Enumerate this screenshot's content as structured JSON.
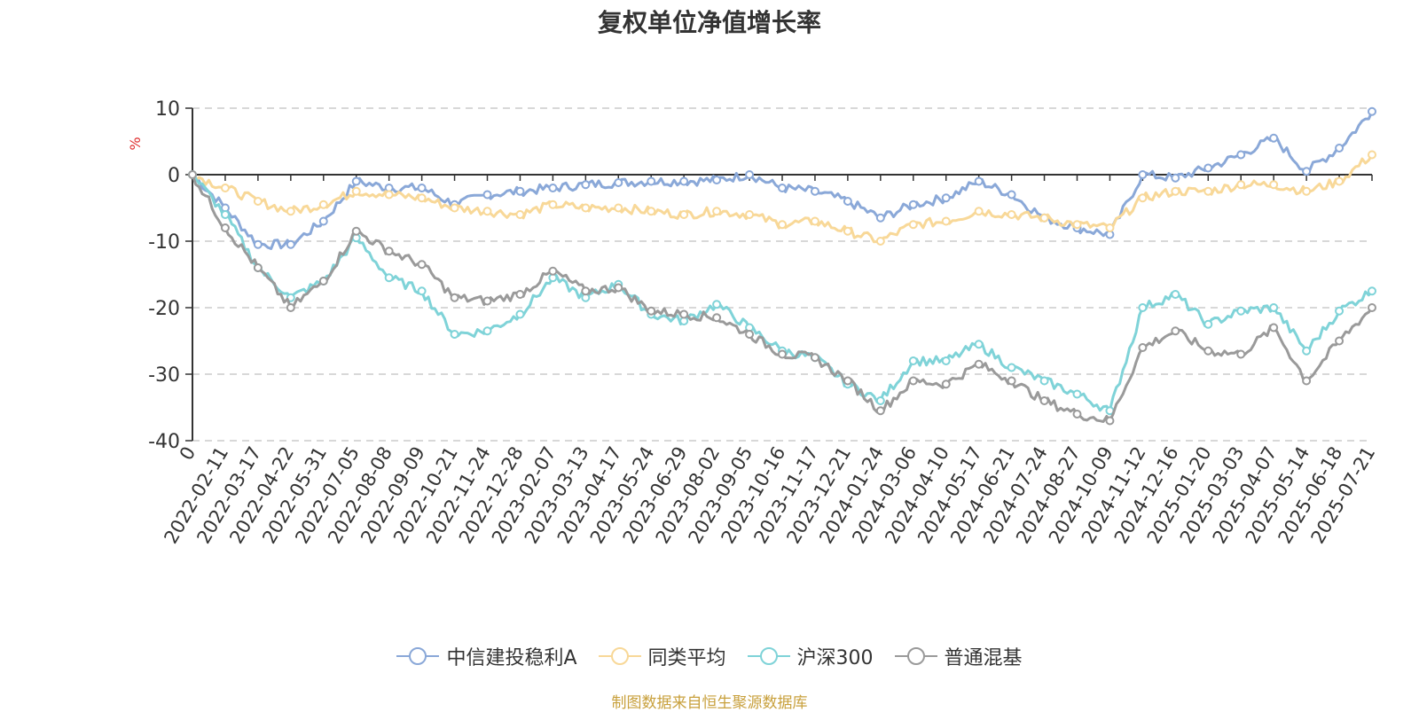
{
  "chart_data": {
    "type": "line",
    "title": "复权单位净值增长率",
    "ylabel": "%",
    "ylim": [
      -40,
      10
    ],
    "yticks": [
      10,
      0,
      -10,
      -20,
      -30,
      -40
    ],
    "grid": true,
    "legend_position": "bottom",
    "x_labels": [
      "0",
      "2022-02-11",
      "2022-03-17",
      "2022-04-22",
      "2022-05-31",
      "2022-07-05",
      "2022-08-08",
      "2022-09-09",
      "2022-10-21",
      "2022-11-24",
      "2022-12-28",
      "2023-02-07",
      "2023-03-13",
      "2023-04-17",
      "2023-05-24",
      "2023-06-29",
      "2023-08-02",
      "2023-09-05",
      "2023-10-16",
      "2023-11-17",
      "2023-12-21",
      "2024-01-24",
      "2024-03-06",
      "2024-04-10",
      "2024-05-17",
      "2024-06-21",
      "2024-07-24",
      "2024-08-27",
      "2024-10-09",
      "2024-11-12",
      "2024-12-16",
      "2025-01-20",
      "2025-03-03",
      "2025-04-07",
      "2025-05-14",
      "2025-06-18",
      "2025-07-21"
    ],
    "series": [
      {
        "name": "中信建投稳利A",
        "color": "#8aa8d8",
        "values": [
          0,
          -5,
          -10.5,
          -10.5,
          -7,
          -1,
          -2,
          -2,
          -4.5,
          -3,
          -2.5,
          -2,
          -1.5,
          -1.2,
          -1,
          -1,
          -0.8,
          0,
          -2,
          -2.5,
          -4,
          -6.5,
          -4.5,
          -3.5,
          -1,
          -3,
          -6.5,
          -8,
          -9,
          0,
          -0.5,
          1,
          3,
          5.5,
          0.5,
          4,
          9.5
        ]
      },
      {
        "name": "同类平均",
        "color": "#f8d898",
        "values": [
          0,
          -2,
          -4,
          -5.5,
          -4.5,
          -2.5,
          -3,
          -3.5,
          -5,
          -5.5,
          -6,
          -4.5,
          -5,
          -5,
          -5.5,
          -6,
          -5.5,
          -6,
          -7.5,
          -7,
          -8.5,
          -10,
          -7.5,
          -7,
          -5.5,
          -6,
          -6.5,
          -7.5,
          -8,
          -3.5,
          -2.5,
          -2.5,
          -1.5,
          -1.5,
          -2.5,
          -1,
          3
        ]
      },
      {
        "name": "沪深300",
        "color": "#7fd3d8",
        "values": [
          0,
          -6,
          -14,
          -18.5,
          -16,
          -9.5,
          -15.5,
          -17.5,
          -24,
          -23.5,
          -21,
          -15.5,
          -18.5,
          -16.5,
          -21,
          -22,
          -19.5,
          -23,
          -26.5,
          -27.5,
          -31.5,
          -34,
          -28,
          -28,
          -25.5,
          -29,
          -31,
          -33,
          -35.5,
          -20,
          -18,
          -22.5,
          -20.5,
          -20,
          -26.5,
          -20.5,
          -17.5
        ]
      },
      {
        "name": "普通混基",
        "color": "#9a9a9a",
        "values": [
          0,
          -8,
          -14,
          -20,
          -16,
          -8.5,
          -11.5,
          -13.5,
          -18.5,
          -19,
          -18,
          -14.5,
          -17.5,
          -17,
          -20.5,
          -21,
          -21.5,
          -24,
          -27,
          -27.5,
          -31,
          -35.5,
          -31,
          -31.5,
          -28.5,
          -31,
          -34,
          -36,
          -37,
          -26,
          -23.5,
          -26.5,
          -27,
          -23,
          -31,
          -25,
          -20
        ]
      }
    ]
  },
  "legend": {
    "items": [
      {
        "label": "中信建投稳利A",
        "color": "#8aa8d8"
      },
      {
        "label": "同类平均",
        "color": "#f8d898"
      },
      {
        "label": "沪深300",
        "color": "#7fd3d8"
      },
      {
        "label": "普通混基",
        "color": "#9a9a9a"
      }
    ]
  },
  "footer": {
    "source": "制图数据来自恒生聚源数据库"
  }
}
